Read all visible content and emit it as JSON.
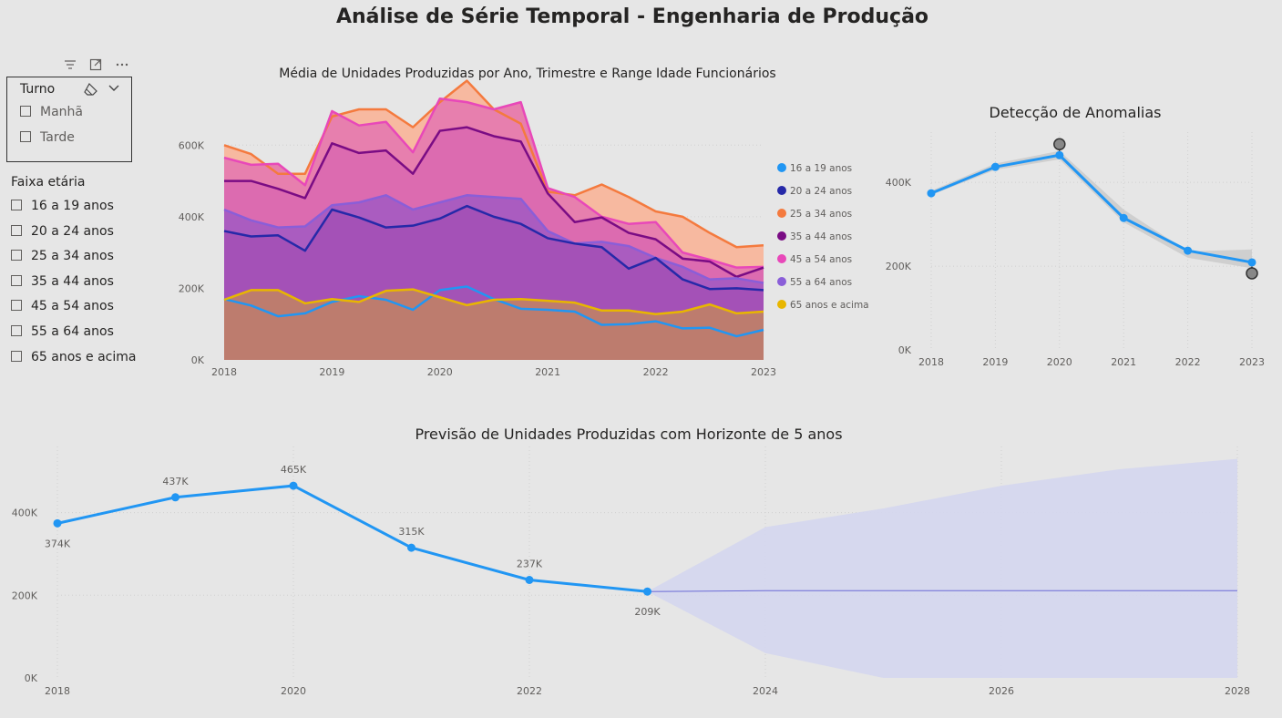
{
  "page_title": "Análise de Série Temporal - Engenharia de Produção",
  "turno_slicer": {
    "title": "Turno",
    "options": [
      "Manhã",
      "Tarde"
    ]
  },
  "faixa_slicer": {
    "title": "Faixa etária",
    "options": [
      "16 a 19 anos",
      "20 a 24 anos",
      "25 a 34 anos",
      "35 a 44 anos",
      "45 a 54 anos",
      "55 a 64 anos",
      "65 anos e acima"
    ]
  },
  "chart_data": [
    {
      "type": "area",
      "title": "Média de Unidades Produzidas por Ano, Trimestre e Range Idade Funcionários",
      "x_ticks": [
        "2018",
        "2019",
        "2020",
        "2021",
        "2022",
        "2023"
      ],
      "y_ticks": [
        "0K",
        "200K",
        "400K",
        "600K"
      ],
      "x_start": 2018,
      "x_step": 0.25,
      "ylim": [
        0,
        700000
      ],
      "legend_position": "right",
      "series": [
        {
          "name": "25 a 34 anos",
          "color": "#f47a3e",
          "fill": "#f7b9a0",
          "values": [
            600000,
            575000,
            520000,
            520000,
            680000,
            700000,
            700000,
            650000,
            720000,
            780000,
            700000,
            660000,
            470000,
            460000,
            490000,
            455000,
            415000,
            400000,
            355000,
            315000,
            320000
          ]
        },
        {
          "name": "45 a 54 anos",
          "color": "#e848b9",
          "fill": "#e77fae",
          "values": [
            565000,
            545000,
            548000,
            488000,
            695000,
            655000,
            665000,
            580000,
            730000,
            720000,
            700000,
            720000,
            480000,
            455000,
            400000,
            380000,
            385000,
            300000,
            280000,
            258000,
            260000
          ]
        },
        {
          "name": "35 a 44 anos",
          "color": "#7a0c84",
          "fill": "#dc6bb0",
          "values": [
            500000,
            500000,
            478000,
            452000,
            605000,
            578000,
            585000,
            520000,
            640000,
            650000,
            625000,
            610000,
            465000,
            385000,
            398000,
            355000,
            337000,
            283000,
            275000,
            232000,
            258000
          ]
        },
        {
          "name": "55 a 64 anos",
          "color": "#8a5ed8",
          "fill": "#aa5cc0",
          "values": [
            420000,
            390000,
            370000,
            373000,
            432000,
            440000,
            460000,
            420000,
            440000,
            460000,
            455000,
            450000,
            360000,
            325000,
            330000,
            318000,
            285000,
            260000,
            225000,
            228000,
            215000
          ]
        },
        {
          "name": "20 a 24 anos",
          "color": "#2629a8",
          "fill": "#a451b7",
          "values": [
            360000,
            345000,
            348000,
            305000,
            420000,
            398000,
            370000,
            375000,
            395000,
            430000,
            400000,
            380000,
            340000,
            325000,
            315000,
            255000,
            285000,
            225000,
            198000,
            200000,
            195000
          ]
        },
        {
          "name": "16 a 19 anos",
          "color": "#2196f3",
          "fill": "#a353b6",
          "values": [
            170000,
            152000,
            122000,
            130000,
            162000,
            178000,
            168000,
            140000,
            195000,
            205000,
            170000,
            143000,
            140000,
            135000,
            98000,
            100000,
            108000,
            88000,
            90000,
            66000,
            84000
          ]
        },
        {
          "name": "65 anos e acima",
          "color": "#e8b600",
          "fill": "#bd7c6e",
          "values": [
            168000,
            195000,
            195000,
            158000,
            170000,
            162000,
            193000,
            197000,
            175000,
            153000,
            168000,
            170000,
            165000,
            160000,
            138000,
            138000,
            128000,
            135000,
            155000,
            130000,
            135000
          ]
        }
      ]
    },
    {
      "type": "line",
      "title": "Detecção de Anomalias",
      "x": [
        "2018",
        "2019",
        "2020",
        "2021",
        "2022",
        "2023"
      ],
      "values": [
        374000,
        437000,
        465000,
        315000,
        237000,
        209000
      ],
      "band_upper": [
        380000,
        445000,
        475000,
        335000,
        235000,
        240000
      ],
      "band_lower": [
        370000,
        430000,
        455000,
        305000,
        220000,
        195000
      ],
      "anomalies": [
        {
          "x": "2020",
          "value": 465000
        },
        {
          "x": "2023",
          "value": 209000
        }
      ],
      "y_ticks": [
        "0K",
        "200K",
        "400K"
      ],
      "ylim": [
        0,
        520000
      ],
      "color": "#2196f3"
    },
    {
      "type": "line",
      "title": "Previsão de Unidades Produzidas com Horizonte de 5 anos",
      "x": [
        2018,
        2019,
        2020,
        2021,
        2022,
        2023
      ],
      "values": [
        374000,
        437000,
        465000,
        315000,
        237000,
        209000
      ],
      "labels": [
        "374K",
        "437K",
        "465K",
        "315K",
        "237K",
        "209K"
      ],
      "forecast_x": [
        2023,
        2024,
        2025,
        2026,
        2027,
        2028
      ],
      "forecast": [
        209000,
        211000,
        211000,
        211000,
        211000,
        211000
      ],
      "forecast_upper": [
        209000,
        365000,
        410000,
        465000,
        505000,
        530000
      ],
      "forecast_lower": [
        209000,
        60000,
        0,
        0,
        0,
        0
      ],
      "x_ticks": [
        "2018",
        "2020",
        "2022",
        "2024",
        "2026",
        "2028"
      ],
      "y_ticks": [
        "0K",
        "200K",
        "400K"
      ],
      "ylim": [
        0,
        560000
      ],
      "color": "#2196f3",
      "forecast_color": "#6b6bd6",
      "band_color": "#d4d6ee"
    }
  ]
}
